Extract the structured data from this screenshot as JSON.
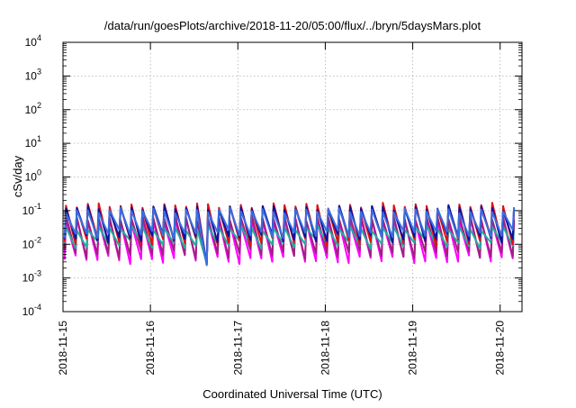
{
  "chart_data": {
    "type": "line",
    "title": "/data/run/goesPlots/archive/2018-11-20/05:00/flux/../bryn/5daysMars.plot",
    "xlabel": "Coordinated Universal Time (UTC)",
    "ylabel": "cSv/day",
    "yscale": "log",
    "ylim": [
      0.0001,
      10000
    ],
    "xlim": [
      "2018-11-15T00:00",
      "2018-11-20T06:00"
    ],
    "grid": true,
    "legend": "none",
    "y_ticks": [
      {
        "base": "10",
        "exp": "-4"
      },
      {
        "base": "10",
        "exp": "-3"
      },
      {
        "base": "10",
        "exp": "-2"
      },
      {
        "base": "10",
        "exp": "-1"
      },
      {
        "base": "10",
        "exp": "0"
      },
      {
        "base": "10",
        "exp": "1"
      },
      {
        "base": "10",
        "exp": "2"
      },
      {
        "base": "10",
        "exp": "3"
      },
      {
        "base": "10",
        "exp": "4"
      }
    ],
    "x_ticks": [
      "2018-11-15",
      "2018-11-16",
      "2018-11-17",
      "2018-11-18",
      "2018-11-19",
      "2018-11-20"
    ],
    "colors": {
      "magenta": "#ff00ff",
      "purple": "#a02080",
      "teal": "#20b0a0",
      "red": "#e01010",
      "navy": "#1010a0",
      "blue": "#3a6ee0",
      "grid": "#b0b0b0"
    },
    "cycle_hours": 3,
    "anomaly": {
      "time": "2018-11-16T16:00",
      "min": 0.003
    },
    "series": [
      {
        "color_key": "magenta",
        "peak": 0.05,
        "trough": 0.0035
      },
      {
        "color_key": "purple",
        "peak": 0.06,
        "trough": 0.005
      },
      {
        "color_key": "teal",
        "peak": 0.03,
        "trough": 0.01
      },
      {
        "color_key": "red",
        "peak": 0.14,
        "trough": 0.012
      },
      {
        "color_key": "navy",
        "peak": 0.12,
        "trough": 0.015
      },
      {
        "color_key": "blue",
        "peak": 0.1,
        "trough": 0.02
      }
    ]
  }
}
